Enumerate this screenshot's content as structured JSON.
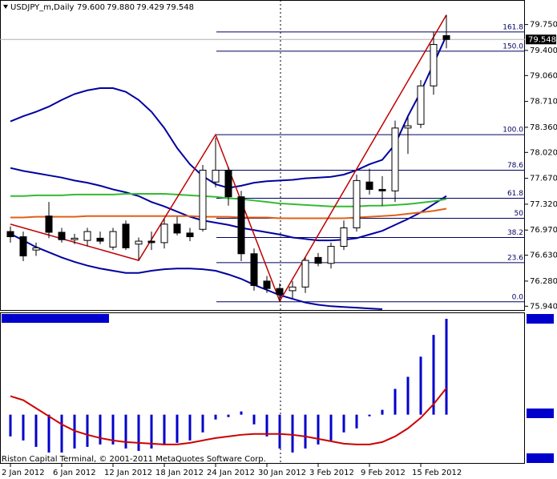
{
  "chart_data": [
    {
      "type": "candlestick",
      "title": "USDJPY_m,Daily",
      "header_labels": [
        "79.600",
        "79.880",
        "79.429",
        "79.548"
      ],
      "footer": "Riston Capital Terminal, © 2001-2011 MetaQuotes Software Corp.",
      "categories": [
        "2 Jan 2012",
        null,
        null,
        null,
        "6 Jan 2012",
        null,
        null,
        null,
        "12 Jan 2012",
        null,
        null,
        null,
        "18 Jan 2012",
        null,
        null,
        null,
        "24 Jan 2012",
        null,
        null,
        null,
        "30 Jan 2012",
        null,
        null,
        null,
        "3 Feb 2012",
        null,
        null,
        null,
        "9 Feb 2012",
        null,
        null,
        null,
        "15 Feb 2012",
        null,
        null
      ],
      "open": [
        76.95,
        76.88,
        76.7,
        77.16,
        76.94,
        76.84,
        76.83,
        76.86,
        76.74,
        77.05,
        76.78,
        76.82,
        76.8,
        77.05,
        76.93,
        76.98,
        77.62,
        77.78,
        77.42,
        76.65,
        76.28,
        76.18,
        76.15,
        76.2,
        76.6,
        76.52,
        76.75,
        77.0,
        77.62,
        77.52,
        77.5,
        78.35,
        78.4,
        78.92,
        79.6
      ],
      "high": [
        77.02,
        76.95,
        76.8,
        77.35,
        77.0,
        76.92,
        77.0,
        76.95,
        77.0,
        77.1,
        76.87,
        76.95,
        77.12,
        77.15,
        77.0,
        77.85,
        78.22,
        77.82,
        77.5,
        76.72,
        76.35,
        76.25,
        76.28,
        76.6,
        76.66,
        76.8,
        77.1,
        77.72,
        77.8,
        77.7,
        78.45,
        78.5,
        79.0,
        79.65,
        79.88
      ],
      "low": [
        76.8,
        76.55,
        76.62,
        76.86,
        76.8,
        76.78,
        76.75,
        76.78,
        76.7,
        76.7,
        76.56,
        76.7,
        76.72,
        76.9,
        76.82,
        76.95,
        77.55,
        77.3,
        76.55,
        76.15,
        76.12,
        76.01,
        76.05,
        76.12,
        76.48,
        76.45,
        76.7,
        76.95,
        77.45,
        77.3,
        77.35,
        78.0,
        78.35,
        78.8,
        79.429
      ],
      "close": [
        76.88,
        76.62,
        76.73,
        76.94,
        76.84,
        76.86,
        76.95,
        76.82,
        76.95,
        76.73,
        76.82,
        76.8,
        77.05,
        76.93,
        76.88,
        77.78,
        77.78,
        77.42,
        76.65,
        76.22,
        76.18,
        76.1,
        76.2,
        76.56,
        76.52,
        76.75,
        77.0,
        77.64,
        77.52,
        77.5,
        78.35,
        78.38,
        78.92,
        79.48,
        79.548
      ],
      "up_color": "#ffffff",
      "down_color": "#000000",
      "series": [
        {
          "color": "#0000a0",
          "values": [
            78.44,
            78.51,
            78.57,
            78.64,
            78.73,
            78.81,
            78.86,
            78.89,
            78.89,
            78.84,
            78.73,
            78.57,
            78.35,
            78.08,
            77.86,
            77.7,
            77.59,
            77.54,
            77.57,
            77.61,
            77.63,
            77.64,
            77.65,
            77.67,
            77.68,
            77.69,
            77.72,
            77.78,
            77.86,
            77.92,
            78.13,
            78.51,
            78.84,
            79.22,
            79.6
          ]
        },
        {
          "color": "#0000a0",
          "values": [
            77.81,
            77.77,
            77.74,
            77.71,
            77.68,
            77.64,
            77.61,
            77.57,
            77.52,
            77.48,
            77.43,
            77.35,
            77.29,
            77.22,
            77.15,
            77.1,
            77.07,
            77.04,
            77.0,
            76.97,
            76.94,
            76.91,
            76.87,
            76.85,
            76.83,
            76.83,
            76.84,
            76.86,
            76.91,
            76.96,
            77.04,
            77.12,
            77.21,
            77.32,
            77.43
          ]
        },
        {
          "color": "#0000a0",
          "values": [
            76.92,
            76.83,
            76.74,
            76.67,
            76.6,
            76.54,
            76.49,
            76.45,
            76.42,
            76.39,
            76.39,
            76.42,
            76.44,
            76.45,
            76.45,
            76.44,
            76.42,
            76.37,
            76.31,
            76.23,
            76.16,
            76.09,
            76.04,
            75.99,
            75.96,
            75.94,
            75.93,
            75.92,
            75.91,
            75.9,
            null,
            null,
            null,
            null,
            null
          ]
        },
        {
          "color": "#33bb33",
          "values": [
            77.43,
            77.43,
            77.44,
            77.44,
            77.44,
            77.45,
            77.45,
            77.45,
            77.45,
            77.46,
            77.46,
            77.46,
            77.46,
            77.45,
            77.44,
            77.43,
            77.42,
            77.4,
            77.39,
            77.37,
            77.35,
            77.33,
            77.32,
            77.31,
            77.3,
            77.29,
            77.29,
            77.29,
            77.3,
            77.3,
            77.31,
            77.32,
            77.34,
            77.36,
            77.39
          ]
        },
        {
          "color": "#e0601a",
          "values": [
            77.14,
            77.14,
            77.15,
            77.15,
            77.15,
            77.15,
            77.16,
            77.16,
            77.16,
            77.16,
            77.16,
            77.16,
            77.16,
            77.16,
            77.16,
            77.15,
            77.15,
            77.15,
            77.14,
            77.14,
            77.14,
            77.13,
            77.13,
            77.13,
            77.13,
            77.13,
            77.13,
            77.14,
            77.15,
            77.16,
            77.17,
            77.19,
            77.21,
            77.23,
            77.26
          ]
        }
      ],
      "zigzag": {
        "color": "#c00000",
        "x": [
          0,
          10,
          16,
          21,
          34
        ],
        "values": [
          77.05,
          76.56,
          78.26,
          76.01,
          79.88
        ]
      },
      "fibo": [
        {
          "label": "161.8",
          "price": 79.65
        },
        {
          "label": "150.0",
          "price": 79.39
        },
        {
          "label": "100.0",
          "price": 78.26
        },
        {
          "label": "78.6",
          "price": 77.78
        },
        {
          "label": "61.8",
          "price": 77.4
        },
        {
          "label": "50",
          "price": 77.13
        },
        {
          "label": "38.2",
          "price": 76.87
        },
        {
          "label": "23.6",
          "price": 76.53
        },
        {
          "label": "0.0",
          "price": 76.0
        }
      ],
      "last_price": {
        "value": 79.548,
        "label": "79.548"
      },
      "ylim": [
        75.9,
        80.06
      ],
      "yticks": [
        {
          "value": 79.75,
          "label": "79.750"
        },
        {
          "value": 79.4,
          "label": "79.400"
        },
        {
          "value": 79.06,
          "label": "79.060"
        },
        {
          "value": 78.71,
          "label": "78.710"
        },
        {
          "value": 78.36,
          "label": "78.360"
        },
        {
          "value": 78.02,
          "label": "78.020"
        },
        {
          "value": 77.67,
          "label": "77.670"
        },
        {
          "value": 77.32,
          "label": "77.320"
        },
        {
          "value": 76.97,
          "label": "76.970"
        },
        {
          "value": 76.63,
          "label": "76.630"
        },
        {
          "value": 76.28,
          "label": "76.280"
        },
        {
          "value": 75.94,
          "label": "75.940"
        }
      ]
    },
    {
      "type": "bar",
      "color": "#0000cc",
      "values": [
        -0.27,
        -0.32,
        -0.4,
        -0.47,
        -0.47,
        -0.42,
        -0.4,
        -0.37,
        -0.37,
        -0.42,
        -0.45,
        -0.42,
        -0.38,
        -0.35,
        -0.32,
        -0.22,
        -0.06,
        -0.03,
        0.04,
        -0.12,
        -0.27,
        -0.42,
        -0.47,
        -0.42,
        -0.37,
        -0.32,
        -0.22,
        -0.17,
        -0.02,
        0.06,
        0.32,
        0.47,
        0.72,
        0.99,
        1.19
      ],
      "series": [
        {
          "color": "#cc0000",
          "values": [
            0.23,
            0.18,
            0.08,
            -0.02,
            -0.12,
            -0.2,
            -0.25,
            -0.29,
            -0.32,
            -0.34,
            -0.35,
            -0.36,
            -0.37,
            -0.37,
            -0.35,
            -0.32,
            -0.29,
            -0.27,
            -0.25,
            -0.24,
            -0.24,
            -0.24,
            -0.25,
            -0.27,
            -0.3,
            -0.33,
            -0.36,
            -0.37,
            -0.37,
            -0.34,
            -0.27,
            -0.17,
            -0.04,
            0.13,
            0.33
          ]
        }
      ],
      "ylim": [
        -0.6,
        1.25
      ]
    }
  ]
}
